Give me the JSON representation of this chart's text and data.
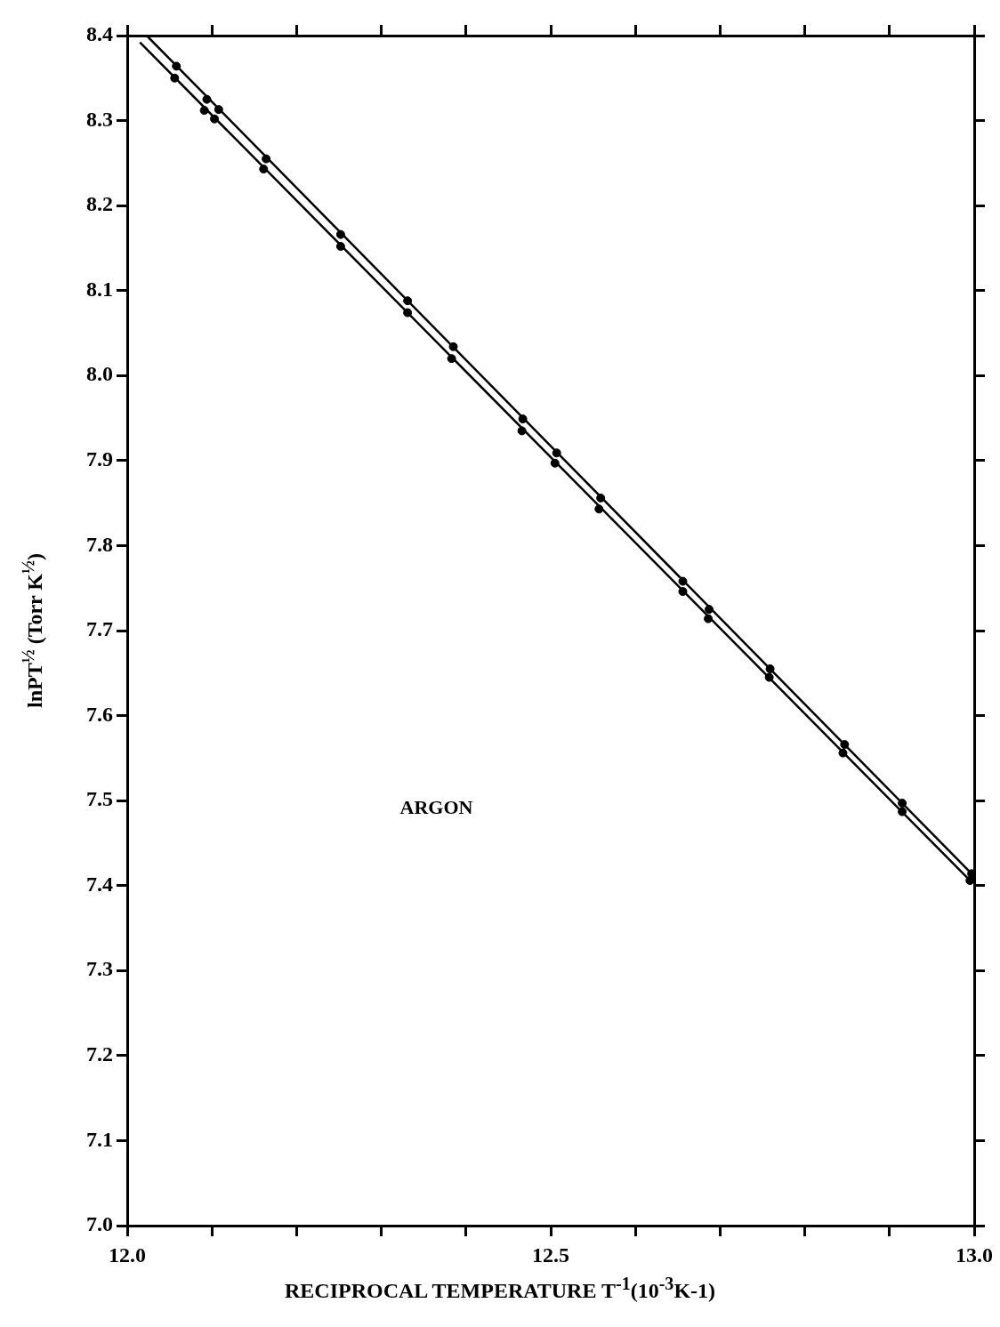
{
  "chart_data": {
    "type": "scatter",
    "xlabel": "RECIPROCAL TEMPERATURE T$^{-1}$(10$^{-3}$K-1)",
    "ylabel": "lnPT$^{½}$ (Torr K$^{½}$)",
    "annotations": [
      "ARGON"
    ],
    "xlim": [
      12.0,
      13.0
    ],
    "ylim": [
      7.0,
      8.4
    ],
    "xticks": [
      {
        "value": 12.0,
        "label": "12.0"
      },
      {
        "value": 12.1,
        "label": null
      },
      {
        "value": 12.2,
        "label": null
      },
      {
        "value": 12.3,
        "label": null
      },
      {
        "value": 12.4,
        "label": null
      },
      {
        "value": 12.5,
        "label": "12.5"
      },
      {
        "value": 12.6,
        "label": null
      },
      {
        "value": 12.7,
        "label": null
      },
      {
        "value": 12.8,
        "label": null
      },
      {
        "value": 12.9,
        "label": null
      },
      {
        "value": 13.0,
        "label": "13.0"
      }
    ],
    "yticks": [
      {
        "value": 7.0,
        "label": "7.0"
      },
      {
        "value": 7.1,
        "label": "7.1"
      },
      {
        "value": 7.2,
        "label": "7.2"
      },
      {
        "value": 7.3,
        "label": "7.3"
      },
      {
        "value": 7.4,
        "label": "7.4"
      },
      {
        "value": 7.5,
        "label": "7.5"
      },
      {
        "value": 7.6,
        "label": "7.6"
      },
      {
        "value": 7.7,
        "label": "7.7"
      },
      {
        "value": 7.8,
        "label": "7.8"
      },
      {
        "value": 7.9,
        "label": "7.9"
      },
      {
        "value": 8.0,
        "label": "8.0"
      },
      {
        "value": 8.1,
        "label": "8.1"
      },
      {
        "value": 8.2,
        "label": "8.2"
      },
      {
        "value": 8.3,
        "label": "8.3"
      },
      {
        "value": 8.4,
        "label": "8.4"
      }
    ],
    "marker": "circle",
    "series": [
      {
        "type": "scatter",
        "color": "#000000",
        "x": [
          12.058,
          12.094,
          12.108,
          12.164,
          12.252,
          12.331,
          12.385,
          12.467,
          12.507,
          12.559,
          12.656,
          12.687,
          12.759,
          12.847,
          12.915,
          12.997
        ],
        "values": [
          8.364,
          8.325,
          8.313,
          8.255,
          8.166,
          8.088,
          8.034,
          7.949,
          7.909,
          7.856,
          7.758,
          7.725,
          7.655,
          7.566,
          7.497,
          7.414
        ]
      },
      {
        "type": "scatter",
        "color": "#000000",
        "x": [
          12.056,
          12.091,
          12.103,
          12.161,
          12.252,
          12.331,
          12.383,
          12.466,
          12.505,
          12.557,
          12.656,
          12.686,
          12.758,
          12.845,
          12.915,
          12.995
        ],
        "values": [
          8.35,
          8.312,
          8.302,
          8.243,
          8.152,
          8.074,
          8.02,
          7.935,
          7.897,
          7.843,
          7.746,
          7.714,
          7.645,
          7.556,
          7.487,
          7.406
        ]
      },
      {
        "type": "line",
        "marker": "none",
        "color": "#000000",
        "x": [
          12.023,
          12.997
        ],
        "values": [
          8.4,
          7.414
        ]
      },
      {
        "type": "line",
        "marker": "none",
        "color": "#000000",
        "x": [
          12.015,
          12.995
        ],
        "values": [
          8.392,
          7.406
        ]
      }
    ]
  }
}
